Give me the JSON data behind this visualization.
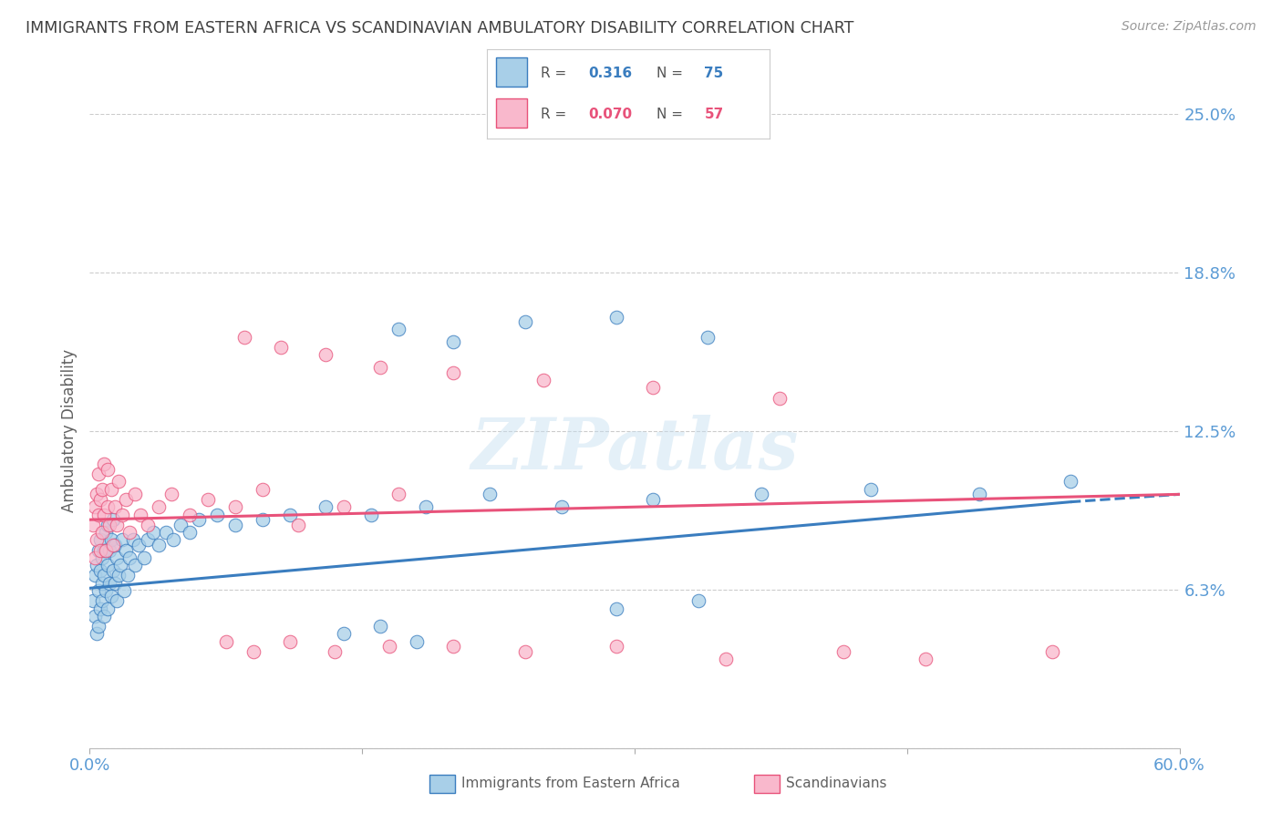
{
  "title": "IMMIGRANTS FROM EASTERN AFRICA VS SCANDINAVIAN AMBULATORY DISABILITY CORRELATION CHART",
  "source": "Source: ZipAtlas.com",
  "ylabel": "Ambulatory Disability",
  "xlim": [
    0.0,
    0.6
  ],
  "ylim": [
    0.0,
    0.25
  ],
  "yticks": [
    0.0,
    0.0625,
    0.125,
    0.1875,
    0.25
  ],
  "ytick_labels": [
    "",
    "6.3%",
    "12.5%",
    "18.8%",
    "25.0%"
  ],
  "xticks": [
    0.0,
    0.15,
    0.3,
    0.45,
    0.6
  ],
  "xtick_labels": [
    "0.0%",
    "",
    "",
    "",
    "60.0%"
  ],
  "color_eastern": "#a8cfe8",
  "color_scand": "#f9b8cc",
  "line_color_eastern": "#3a7dbf",
  "line_color_scand": "#e8527a",
  "background_color": "#ffffff",
  "grid_color": "#cccccc",
  "watermark": "ZIPatlas",
  "title_color": "#404040",
  "axis_label_color": "#606060",
  "tick_label_color": "#5b9bd5",
  "legend_R_color": "#3a7dbf",
  "legend_N_color_ea": "#3a7dbf",
  "legend_N_color_sc": "#e8527a",
  "eastern_x": [
    0.002,
    0.003,
    0.003,
    0.004,
    0.004,
    0.005,
    0.005,
    0.005,
    0.006,
    0.006,
    0.006,
    0.007,
    0.007,
    0.007,
    0.008,
    0.008,
    0.008,
    0.009,
    0.009,
    0.01,
    0.01,
    0.01,
    0.011,
    0.011,
    0.012,
    0.012,
    0.013,
    0.013,
    0.014,
    0.014,
    0.015,
    0.015,
    0.016,
    0.017,
    0.018,
    0.019,
    0.02,
    0.021,
    0.022,
    0.024,
    0.025,
    0.027,
    0.03,
    0.032,
    0.035,
    0.038,
    0.042,
    0.046,
    0.05,
    0.055,
    0.06,
    0.07,
    0.08,
    0.095,
    0.11,
    0.13,
    0.155,
    0.185,
    0.22,
    0.26,
    0.31,
    0.37,
    0.43,
    0.49,
    0.54,
    0.17,
    0.2,
    0.24,
    0.29,
    0.34,
    0.29,
    0.335,
    0.14,
    0.16,
    0.18
  ],
  "eastern_y": [
    0.058,
    0.052,
    0.068,
    0.045,
    0.072,
    0.048,
    0.062,
    0.078,
    0.055,
    0.07,
    0.082,
    0.058,
    0.075,
    0.065,
    0.052,
    0.068,
    0.078,
    0.062,
    0.085,
    0.055,
    0.072,
    0.088,
    0.065,
    0.078,
    0.06,
    0.082,
    0.07,
    0.09,
    0.065,
    0.08,
    0.058,
    0.075,
    0.068,
    0.072,
    0.082,
    0.062,
    0.078,
    0.068,
    0.075,
    0.082,
    0.072,
    0.08,
    0.075,
    0.082,
    0.085,
    0.08,
    0.085,
    0.082,
    0.088,
    0.085,
    0.09,
    0.092,
    0.088,
    0.09,
    0.092,
    0.095,
    0.092,
    0.095,
    0.1,
    0.095,
    0.098,
    0.1,
    0.102,
    0.1,
    0.105,
    0.165,
    0.16,
    0.168,
    0.17,
    0.162,
    0.055,
    0.058,
    0.045,
    0.048,
    0.042
  ],
  "scand_x": [
    0.002,
    0.003,
    0.003,
    0.004,
    0.004,
    0.005,
    0.005,
    0.006,
    0.006,
    0.007,
    0.007,
    0.008,
    0.008,
    0.009,
    0.01,
    0.01,
    0.011,
    0.012,
    0.013,
    0.014,
    0.015,
    0.016,
    0.018,
    0.02,
    0.022,
    0.025,
    0.028,
    0.032,
    0.038,
    0.045,
    0.055,
    0.065,
    0.08,
    0.095,
    0.115,
    0.14,
    0.17,
    0.085,
    0.105,
    0.13,
    0.16,
    0.2,
    0.25,
    0.31,
    0.38,
    0.46,
    0.53,
    0.075,
    0.09,
    0.11,
    0.135,
    0.165,
    0.2,
    0.24,
    0.29,
    0.35,
    0.415
  ],
  "scand_y": [
    0.088,
    0.095,
    0.075,
    0.1,
    0.082,
    0.092,
    0.108,
    0.078,
    0.098,
    0.085,
    0.102,
    0.092,
    0.112,
    0.078,
    0.095,
    0.11,
    0.088,
    0.102,
    0.08,
    0.095,
    0.088,
    0.105,
    0.092,
    0.098,
    0.085,
    0.1,
    0.092,
    0.088,
    0.095,
    0.1,
    0.092,
    0.098,
    0.095,
    0.102,
    0.088,
    0.095,
    0.1,
    0.162,
    0.158,
    0.155,
    0.15,
    0.148,
    0.145,
    0.142,
    0.138,
    0.035,
    0.038,
    0.042,
    0.038,
    0.042,
    0.038,
    0.04,
    0.04,
    0.038,
    0.04,
    0.035,
    0.038
  ],
  "line_ea_x0": 0.0,
  "line_ea_y0": 0.063,
  "line_ea_x1": 0.54,
  "line_ea_y1": 0.097,
  "line_ea_dash_x0": 0.54,
  "line_ea_dash_y0": 0.097,
  "line_ea_dash_x1": 0.6,
  "line_ea_dash_y1": 0.1,
  "line_sc_x0": 0.0,
  "line_sc_y0": 0.09,
  "line_sc_x1": 0.6,
  "line_sc_y1": 0.1
}
